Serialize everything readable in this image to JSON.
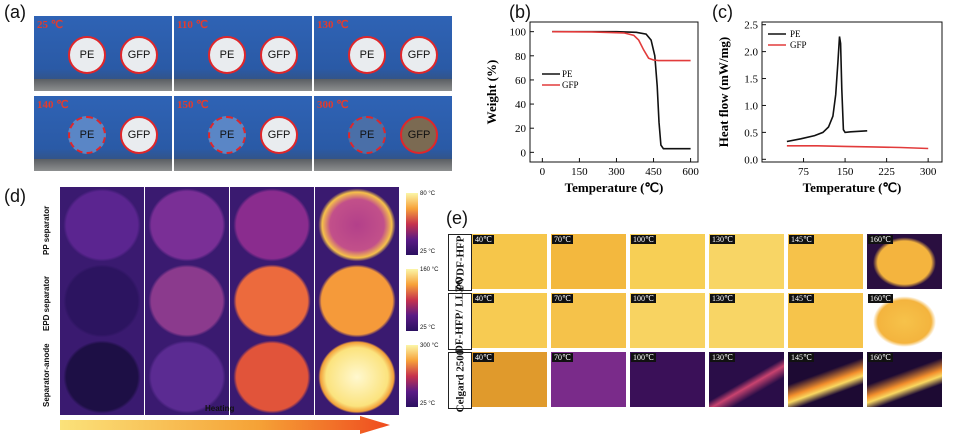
{
  "panel_labels": {
    "a": "(a)",
    "b": "(b)",
    "c": "(c)",
    "d": "(d)",
    "e": "(e)"
  },
  "panel_a": {
    "photos": [
      {
        "temp": "25 ℃",
        "disks": [
          "PE",
          "GFP"
        ]
      },
      {
        "temp": "110 ℃",
        "disks": [
          "PE",
          "GFP"
        ]
      },
      {
        "temp": "130 ℃",
        "disks": [
          "PE",
          "GFP"
        ]
      },
      {
        "temp": "140 ℃",
        "disks": [
          "PE",
          "GFP"
        ]
      },
      {
        "temp": "150 ℃",
        "disks": [
          "PE",
          "GFP"
        ]
      },
      {
        "temp": "300 ℃",
        "disks": [
          "PE",
          "GFP"
        ]
      }
    ]
  },
  "chart_data": [
    {
      "type": "line",
      "panel": "b",
      "xlabel": "Temperature (℃)",
      "ylabel": "Weight (%)",
      "xlim": [
        -50,
        630
      ],
      "ylim": [
        -8,
        108
      ],
      "xticks": [
        0,
        150,
        300,
        450,
        600
      ],
      "yticks": [
        0,
        20,
        40,
        60,
        80,
        100
      ],
      "legend_position": "left",
      "series": [
        {
          "name": "PE",
          "color": "#111111",
          "x": [
            40,
            200,
            300,
            380,
            420,
            440,
            455,
            465,
            472,
            480,
            490,
            500,
            600
          ],
          "y": [
            100,
            100,
            100,
            99.5,
            98,
            93,
            80,
            55,
            25,
            6,
            3,
            3,
            3
          ]
        },
        {
          "name": "GFP",
          "color": "#e23b3b",
          "x": [
            40,
            200,
            330,
            370,
            390,
            410,
            430,
            450,
            470,
            500,
            600
          ],
          "y": [
            100,
            99.8,
            99,
            97,
            93,
            85,
            78,
            76.5,
            76,
            76,
            76
          ]
        }
      ]
    },
    {
      "type": "line",
      "panel": "c",
      "xlabel": "Temperature (℃)",
      "ylabel": "Heat flow (mW/mg)",
      "xlim": [
        0,
        325
      ],
      "ylim": [
        -0.05,
        2.55
      ],
      "xticks": [
        75,
        150,
        225,
        300
      ],
      "yticks": [
        0.0,
        0.5,
        1.0,
        1.5,
        2.0,
        2.5
      ],
      "legend_position": "top-left",
      "series": [
        {
          "name": "PE",
          "color": "#111111",
          "x": [
            45,
            70,
            95,
            110,
            120,
            128,
            133,
            137,
            140,
            142,
            144,
            147,
            150,
            160,
            175,
            190
          ],
          "y": [
            0.33,
            0.38,
            0.44,
            0.5,
            0.6,
            0.8,
            1.2,
            1.8,
            2.28,
            2.15,
            1.3,
            0.55,
            0.5,
            0.51,
            0.52,
            0.53
          ]
        },
        {
          "name": "GFP",
          "color": "#e23b3b",
          "x": [
            45,
            100,
            150,
            200,
            250,
            300
          ],
          "y": [
            0.25,
            0.25,
            0.24,
            0.23,
            0.22,
            0.2
          ]
        }
      ]
    }
  ],
  "panel_d": {
    "rows": [
      "PP separator",
      "EPD separator",
      "Separator-anode"
    ],
    "colorbars": [
      {
        "max": "80 °C",
        "min": "25 °C"
      },
      {
        "max": "160 °C",
        "min": "25 °C"
      },
      {
        "max": "300 °C",
        "min": "25 °C"
      }
    ],
    "arrow_label": "Heating"
  },
  "panel_e": {
    "rows": [
      "PVDF-HFP",
      "PVDF-HFP/ LLZO",
      "Celgard 2500"
    ],
    "temps": [
      "40℃",
      "70℃",
      "100℃",
      "130℃",
      "145℃",
      "160℃"
    ]
  }
}
